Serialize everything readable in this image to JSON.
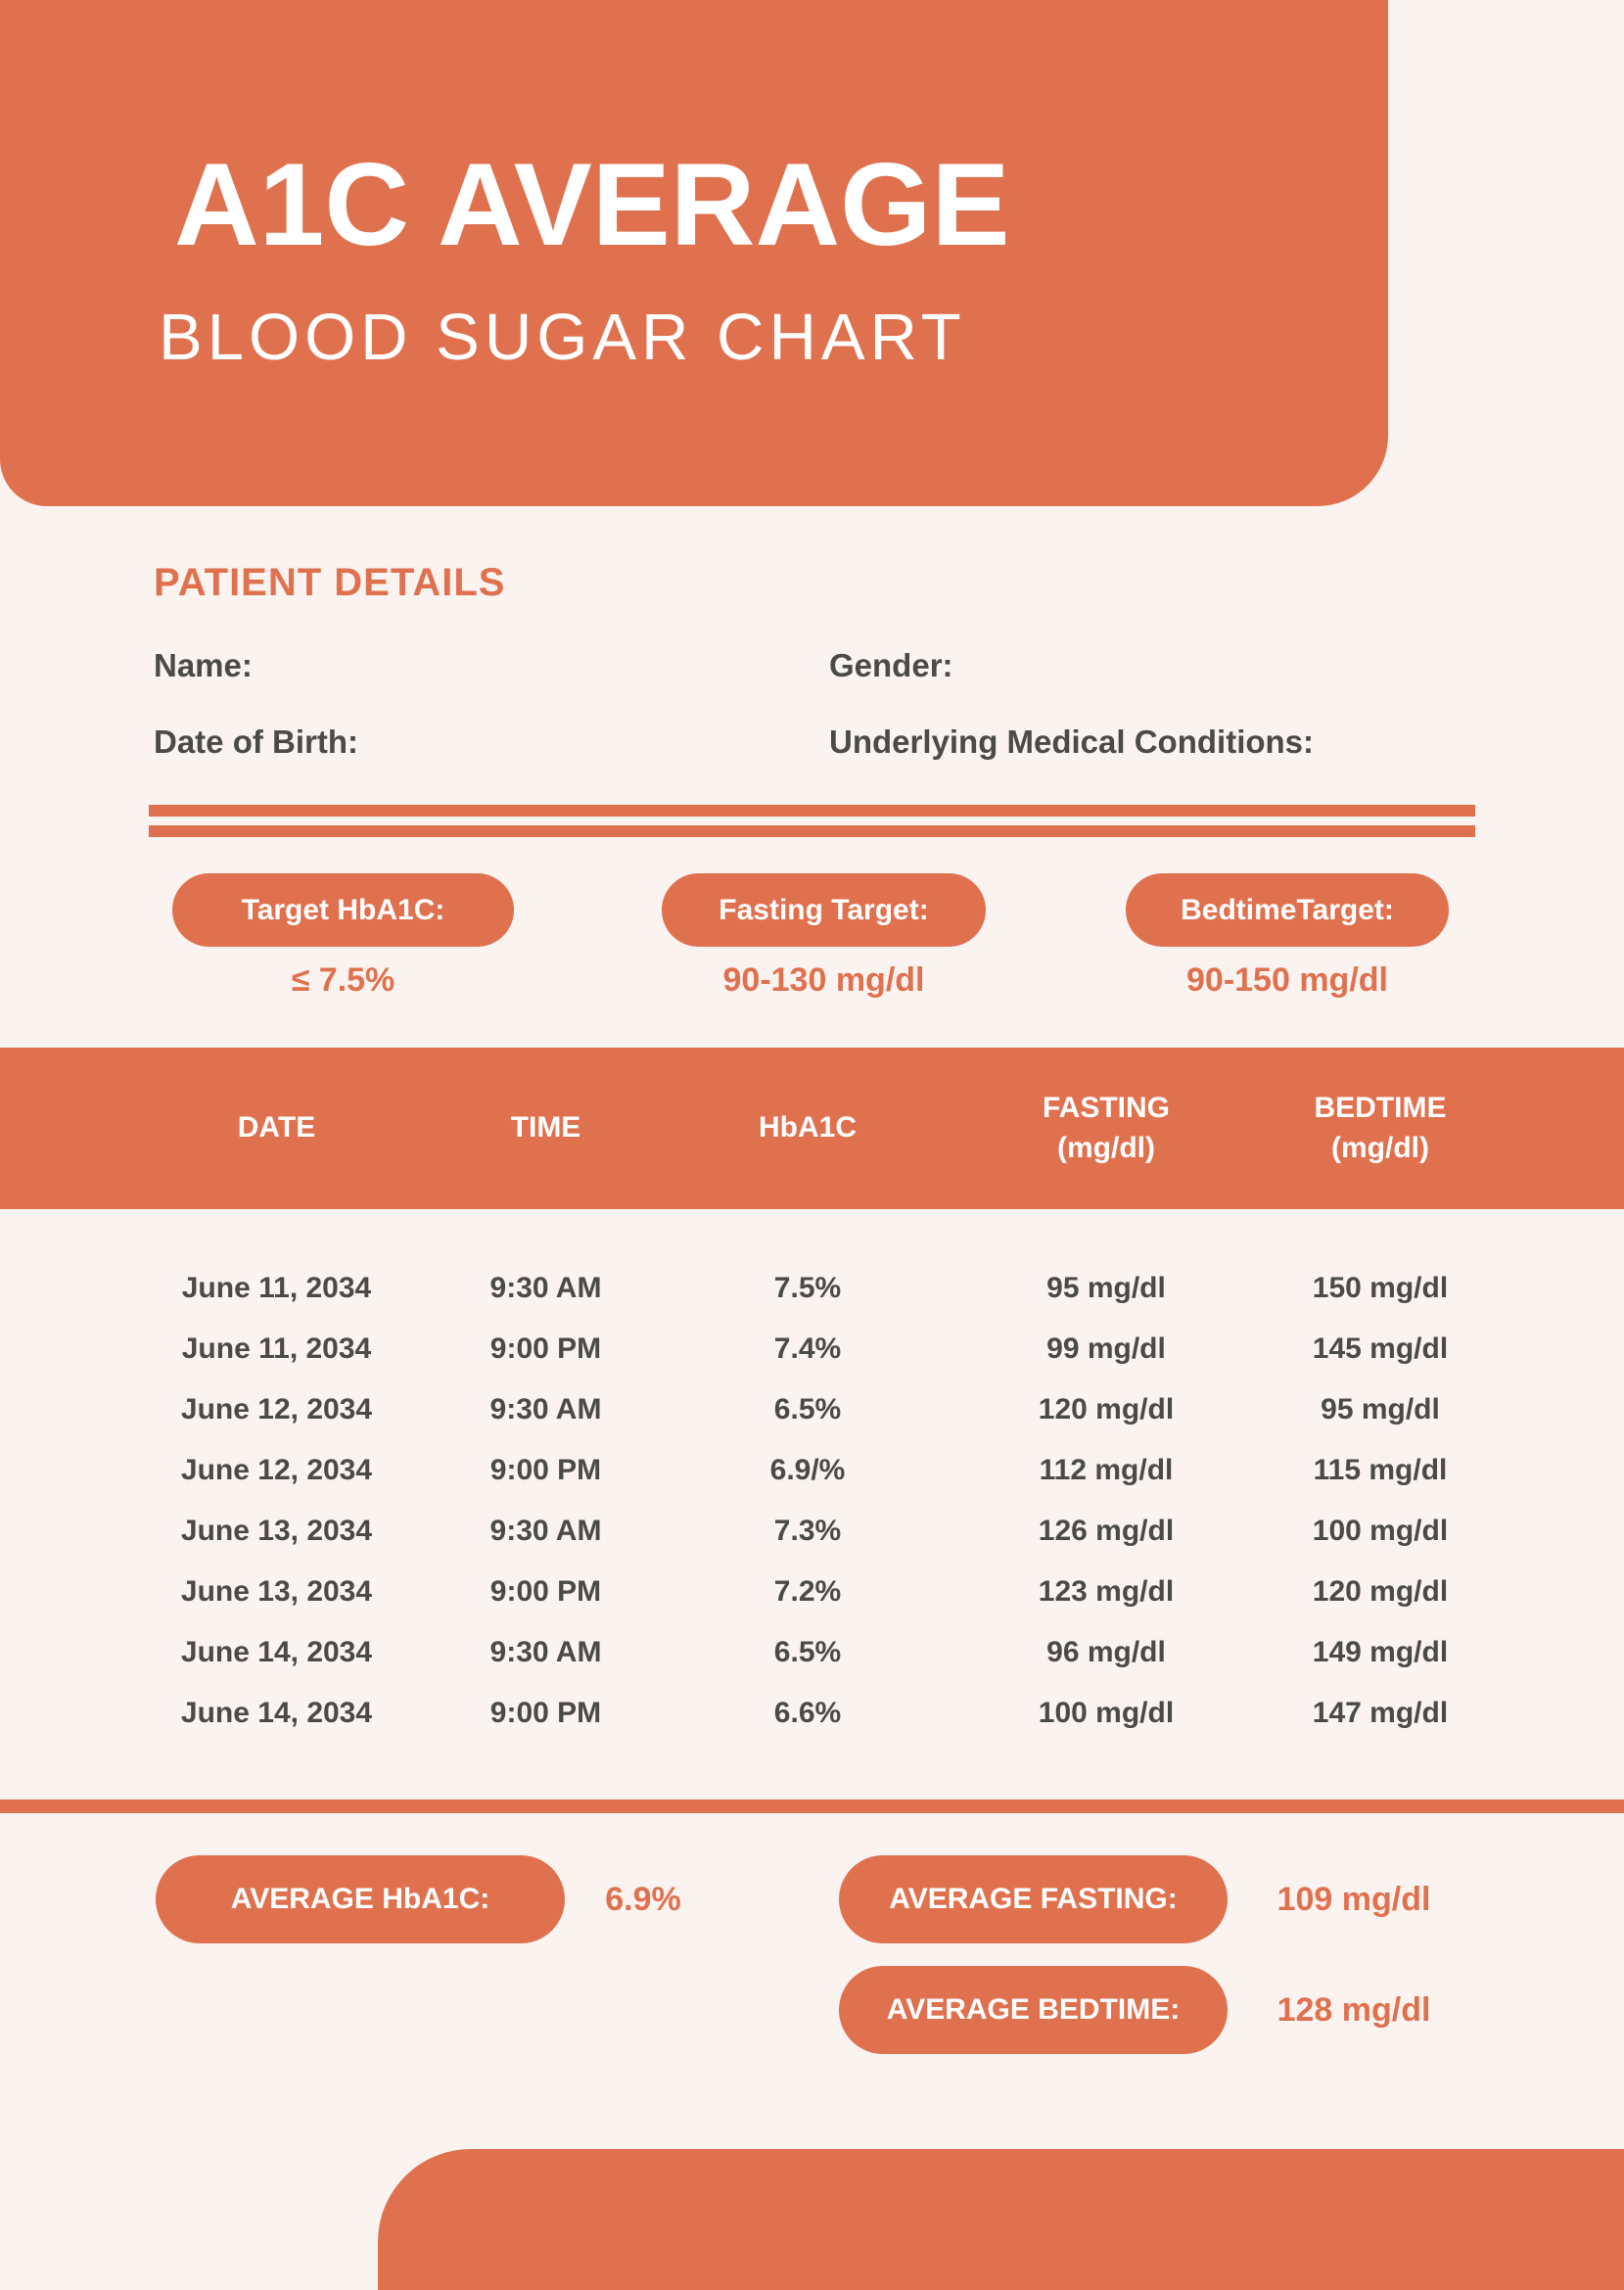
{
  "colors": {
    "accent": "#E0714F",
    "background": "#FAF3EF",
    "text_dark": "#4A4A48",
    "text_light": "#FFFFFF"
  },
  "header": {
    "title": "A1C AVERAGE",
    "subtitle": "BLOOD SUGAR CHART"
  },
  "patient": {
    "section_title": "PATIENT DETAILS",
    "name_label": "Name:",
    "gender_label": "Gender:",
    "dob_label": "Date of Birth:",
    "conditions_label": "Underlying Medical Conditions:"
  },
  "targets": [
    {
      "label": "Target HbA1C:",
      "value": "≤ 7.5%"
    },
    {
      "label": "Fasting Target:",
      "value": "90-130 mg/dl"
    },
    {
      "label": "BedtimeTarget:",
      "value": "90-150 mg/dl"
    }
  ],
  "table": {
    "columns": [
      {
        "label": "DATE",
        "sub": ""
      },
      {
        "label": "TIME",
        "sub": ""
      },
      {
        "label": "HbA1C",
        "sub": ""
      },
      {
        "label": "FASTING",
        "sub": "(mg/dl)"
      },
      {
        "label": "BEDTIME",
        "sub": "(mg/dl)"
      }
    ],
    "rows": [
      [
        "June 11, 2034",
        "9:30 AM",
        "7.5%",
        "95 mg/dl",
        "150 mg/dl"
      ],
      [
        "June 11, 2034",
        "9:00 PM",
        "7.4%",
        "99 mg/dl",
        "145 mg/dl"
      ],
      [
        "June 12, 2034",
        "9:30 AM",
        "6.5%",
        "120 mg/dl",
        "95 mg/dl"
      ],
      [
        "June 12, 2034",
        "9:00 PM",
        "6.9/%",
        "112 mg/dl",
        "115 mg/dl"
      ],
      [
        "June 13, 2034",
        "9:30 AM",
        "7.3%",
        "126 mg/dl",
        "100 mg/dl"
      ],
      [
        "June 13, 2034",
        "9:00 PM",
        "7.2%",
        "123 mg/dl",
        "120 mg/dl"
      ],
      [
        "June 14, 2034",
        "9:30 AM",
        "6.5%",
        "96 mg/dl",
        "149 mg/dl"
      ],
      [
        "June 14, 2034",
        "9:00 PM",
        "6.6%",
        "100 mg/dl",
        "147 mg/dl"
      ]
    ]
  },
  "averages": [
    {
      "label": "AVERAGE HbA1C:",
      "value": "6.9%"
    },
    {
      "label": "AVERAGE FASTING:",
      "value": "109 mg/dl"
    },
    {
      "label": "AVERAGE BEDTIME:",
      "value": "128 mg/dl"
    }
  ]
}
